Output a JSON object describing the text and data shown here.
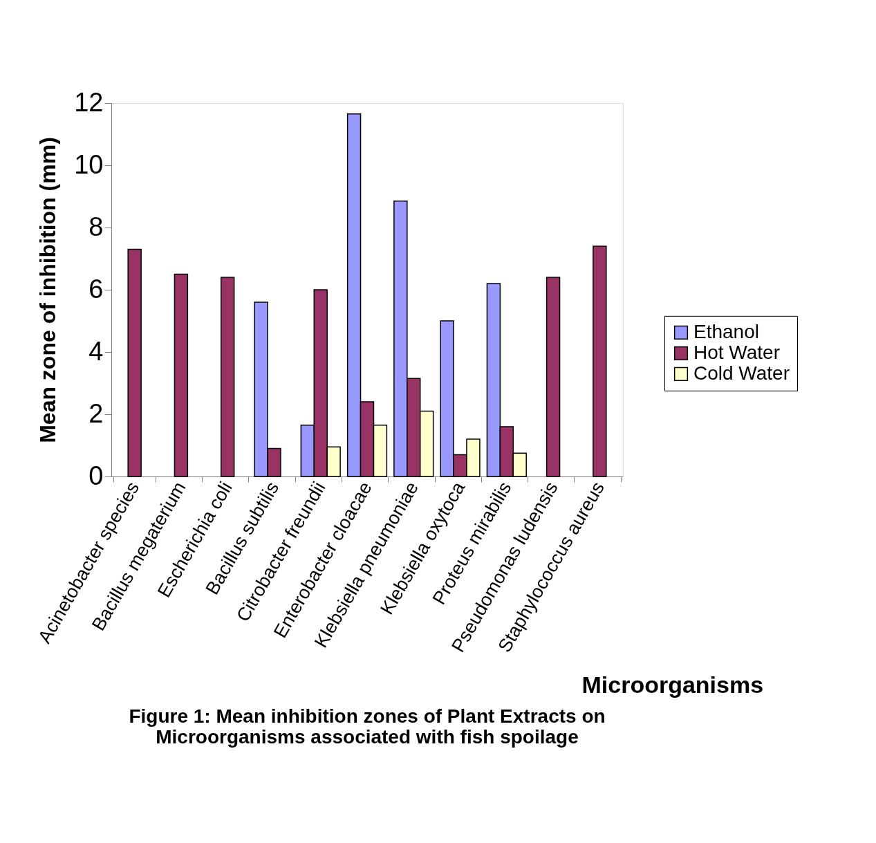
{
  "chart_data": {
    "type": "bar",
    "title": [
      "Figure 1: Mean inhibition zones of Plant Extracts on",
      "Microorganisms associated with fish spoilage"
    ],
    "xlabel": "Microorganisms",
    "ylabel": "Mean zone of inhibition (mm)",
    "categories": [
      "Acinetobacter species",
      "Bacillus megaterium",
      "Escherichia coli",
      "Bacillus subtilis",
      "Citrobacter freundii",
      "Enterobacter cloacae",
      "Klebsiella pneumoniae",
      "Klebsiella oxytoca",
      "Proteus mirabilis",
      "Pseudomonas ludensis",
      "Staphylococcus aureus"
    ],
    "series": [
      {
        "name": "Ethanol",
        "color": "#9999ff",
        "values": [
          null,
          null,
          null,
          5.6,
          1.65,
          11.65,
          8.85,
          5.0,
          6.2,
          null,
          null
        ]
      },
      {
        "name": "Hot Water",
        "color": "#993366",
        "values": [
          7.3,
          6.5,
          6.4,
          0.9,
          6.0,
          2.4,
          3.15,
          0.7,
          1.6,
          6.4,
          7.4
        ]
      },
      {
        "name": "Cold Water",
        "color": "#ffffcc",
        "values": [
          null,
          null,
          null,
          null,
          0.95,
          1.65,
          2.1,
          1.2,
          0.75,
          null,
          null
        ]
      }
    ],
    "ylim": [
      0,
      12
    ],
    "yticks": [
      0,
      2,
      4,
      6,
      8,
      10,
      12
    ],
    "grid": false,
    "legend": "right"
  }
}
